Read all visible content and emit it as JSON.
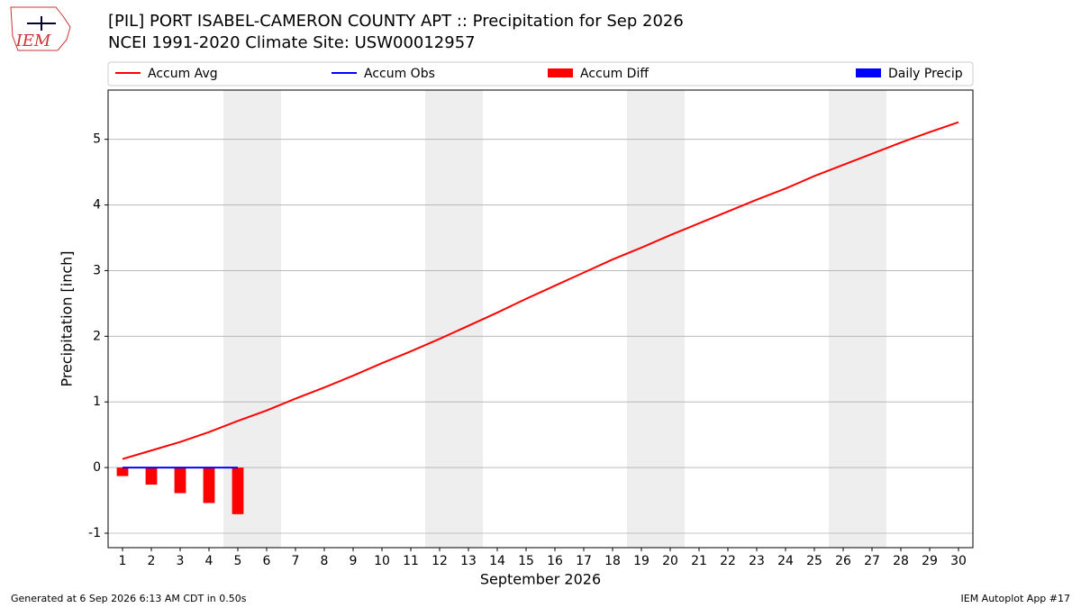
{
  "logo_text": "IEM",
  "footer_left": "Generated at 6 Sep 2026 6:13 AM CDT in 0.50s",
  "footer_right": "IEM Autoplot App #17",
  "chart_data": {
    "type": "line",
    "title": "[PIL] PORT ISABEL-CAMERON COUNTY APT :: Precipitation for Sep 2026",
    "subtitle": "NCEI 1991-2020 Climate Site: USW00012957",
    "xlabel": "September 2026",
    "ylabel": "Precipitation [inch]",
    "x": [
      1,
      2,
      3,
      4,
      5,
      6,
      7,
      8,
      9,
      10,
      11,
      12,
      13,
      14,
      15,
      16,
      17,
      18,
      19,
      20,
      21,
      22,
      23,
      24,
      25,
      26,
      27,
      28,
      29,
      30
    ],
    "series": [
      {
        "name": "Accum Avg",
        "kind": "line",
        "color": "#ff0000",
        "values": [
          0.13,
          0.26,
          0.39,
          0.54,
          0.71,
          0.87,
          1.05,
          1.22,
          1.4,
          1.59,
          1.77,
          1.96,
          2.16,
          2.36,
          2.57,
          2.77,
          2.97,
          3.17,
          3.35,
          3.54,
          3.72,
          3.9,
          4.08,
          4.25,
          4.44,
          4.61,
          4.78,
          4.95,
          5.11,
          5.26
        ]
      },
      {
        "name": "Accum Obs",
        "kind": "line",
        "color": "#0000ff",
        "values": [
          0,
          0,
          0,
          0,
          0,
          null,
          null,
          null,
          null,
          null,
          null,
          null,
          null,
          null,
          null,
          null,
          null,
          null,
          null,
          null,
          null,
          null,
          null,
          null,
          null,
          null,
          null,
          null,
          null,
          null
        ]
      },
      {
        "name": "Accum Diff",
        "kind": "bar",
        "color": "#ff0000",
        "values": [
          -0.13,
          -0.26,
          -0.39,
          -0.54,
          -0.71,
          null,
          null,
          null,
          null,
          null,
          null,
          null,
          null,
          null,
          null,
          null,
          null,
          null,
          null,
          null,
          null,
          null,
          null,
          null,
          null,
          null,
          null,
          null,
          null,
          null
        ]
      },
      {
        "name": "Daily Precip",
        "kind": "bar",
        "color": "#0000ff",
        "values": [
          0,
          0,
          0,
          0,
          0,
          null,
          null,
          null,
          null,
          null,
          null,
          null,
          null,
          null,
          null,
          null,
          null,
          null,
          null,
          null,
          null,
          null,
          null,
          null,
          null,
          null,
          null,
          null,
          null,
          null
        ]
      }
    ],
    "shaded_spans": [
      [
        4.5,
        6.5
      ],
      [
        11.5,
        13.5
      ],
      [
        18.5,
        20.5
      ],
      [
        25.5,
        27.5
      ]
    ],
    "shade_color": "#eeeeee",
    "xlim": [
      0.5,
      30.5
    ],
    "xticks": [
      1,
      2,
      3,
      4,
      5,
      6,
      7,
      8,
      9,
      10,
      11,
      12,
      13,
      14,
      15,
      16,
      17,
      18,
      19,
      20,
      21,
      22,
      23,
      24,
      25,
      26,
      27,
      28,
      29,
      30
    ],
    "ylim": [
      -1.22,
      5.75
    ],
    "yticks": [
      -1,
      0,
      1,
      2,
      3,
      4,
      5
    ],
    "grid": true,
    "legend": "top"
  }
}
